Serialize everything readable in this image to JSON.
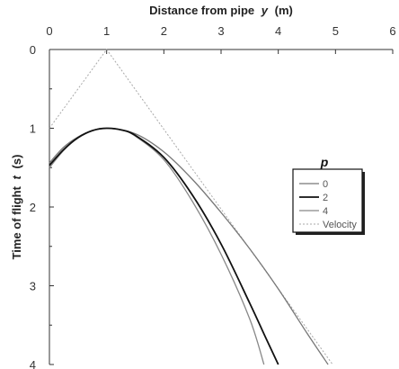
{
  "chart_data": {
    "type": "line",
    "xlabel_main": "Distance from pipe",
    "xlabel_var": "y",
    "xlabel_unit": "(m)",
    "ylabel_main": "Time of flight",
    "ylabel_var": "t",
    "ylabel_unit": "(s)",
    "xlim": [
      0,
      6
    ],
    "ylim": [
      0,
      4
    ],
    "x_axis_position": "top",
    "y_axis_inverted": true,
    "x_ticks": [
      "0",
      "1",
      "2",
      "3",
      "4",
      "5",
      "6"
    ],
    "y_ticks": [
      "0",
      "1",
      "2",
      "3",
      "4"
    ],
    "grid": false,
    "legend": {
      "title": "p",
      "placement": "center-right",
      "entries": [
        "0",
        "2",
        "4",
        "Velocity"
      ]
    },
    "series": [
      {
        "name": "0",
        "color": "#777777",
        "style": "solid",
        "x": [
          0,
          0.25,
          0.5,
          0.75,
          1.0,
          1.5,
          2.0,
          2.5,
          3.0,
          3.5,
          4.0,
          4.5,
          4.87
        ],
        "y": [
          1.44,
          1.24,
          1.11,
          1.03,
          1.0,
          1.07,
          1.3,
          1.65,
          2.07,
          2.53,
          3.04,
          3.6,
          4.0
        ]
      },
      {
        "name": "2",
        "color": "#111111",
        "style": "solid",
        "x": [
          0,
          0.25,
          0.5,
          0.75,
          1.0,
          1.25,
          1.5,
          2.0,
          2.5,
          3.0,
          3.5,
          3.8,
          4.0
        ],
        "y": [
          1.47,
          1.27,
          1.12,
          1.03,
          1.0,
          1.02,
          1.09,
          1.37,
          1.85,
          2.47,
          3.22,
          3.69,
          4.0
        ]
      },
      {
        "name": "4",
        "color": "#888888",
        "style": "solid",
        "x": [
          0,
          0.25,
          0.5,
          0.75,
          1.0,
          1.25,
          1.5,
          2.0,
          2.5,
          3.0,
          3.5,
          3.75
        ],
        "y": [
          1.5,
          1.28,
          1.12,
          1.03,
          1.0,
          1.02,
          1.1,
          1.4,
          1.93,
          2.6,
          3.42,
          4.0
        ]
      },
      {
        "name": "Velocity",
        "color": "#aaaaaa",
        "style": "dotted",
        "x": [
          0,
          1,
          4.95
        ],
        "y": [
          1.0,
          0.0,
          4.0
        ]
      }
    ]
  }
}
